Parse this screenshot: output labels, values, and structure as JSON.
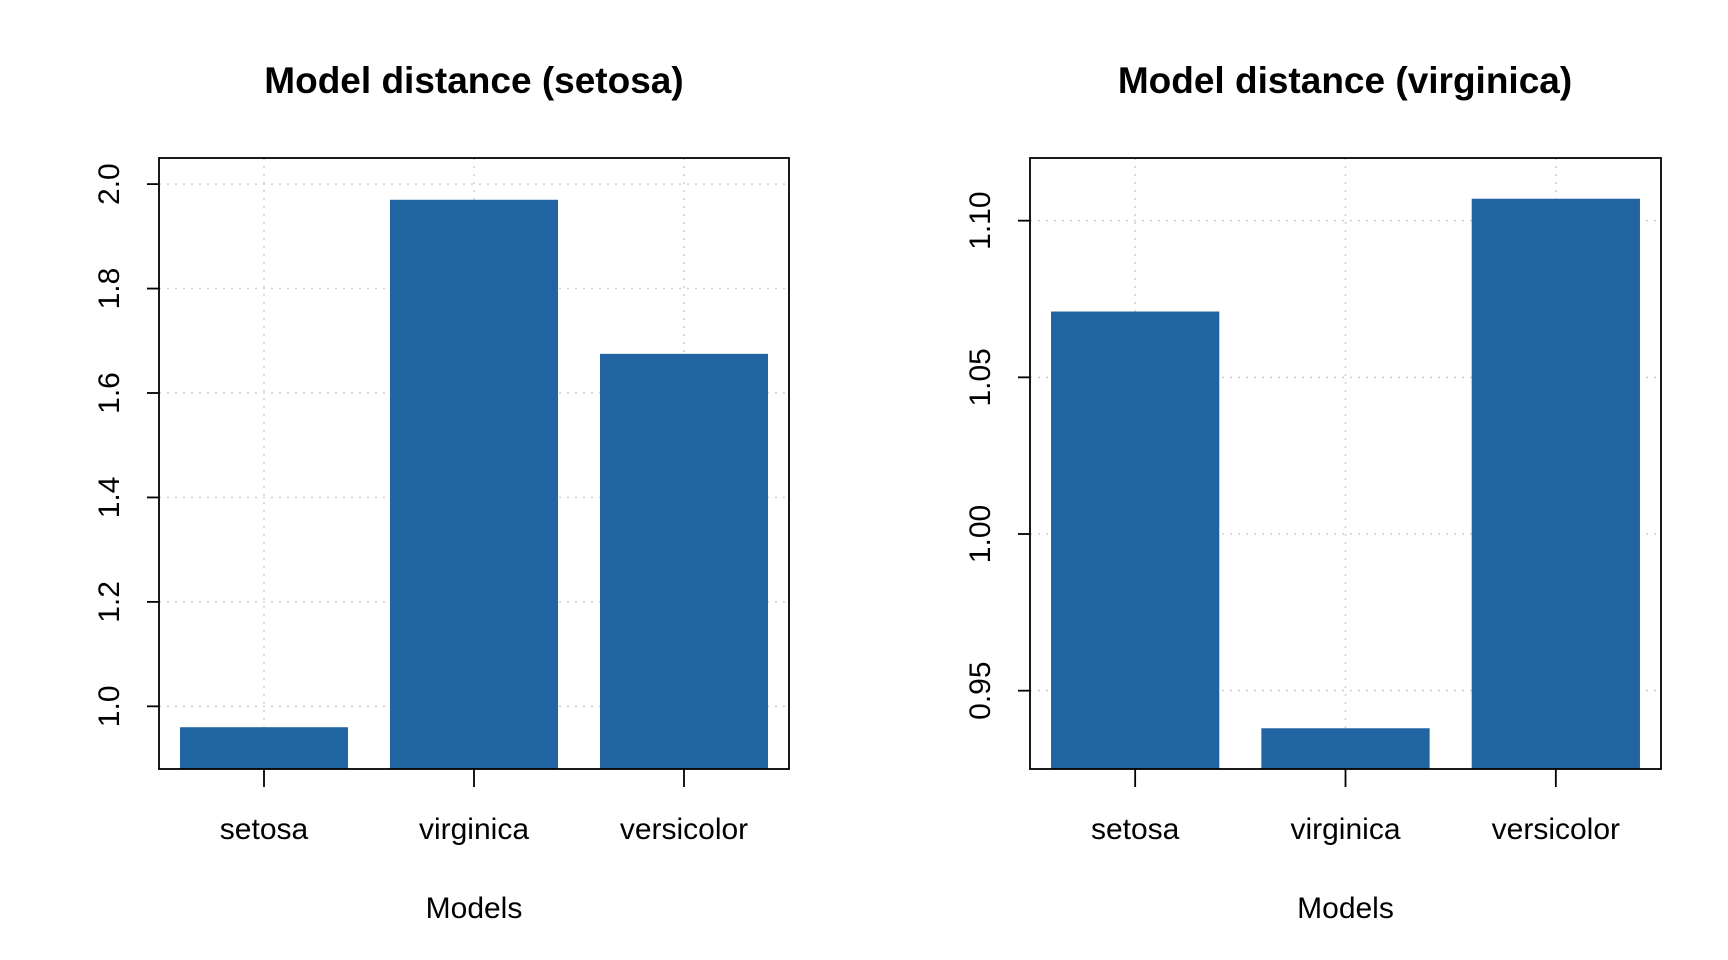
{
  "chart_data": [
    {
      "type": "bar",
      "title": "Model distance (setosa)",
      "categories": [
        "setosa",
        "virginica",
        "versicolor"
      ],
      "values": [
        0.96,
        1.97,
        1.675
      ],
      "xlabel": "Models",
      "ylabel": "",
      "ylim": [
        0.88,
        2.05
      ],
      "yticks": [
        1.0,
        1.2,
        1.4,
        1.6,
        1.8,
        2.0
      ],
      "ytick_labels": [
        "1.0",
        "1.2",
        "1.4",
        "1.6",
        "1.8",
        "2.0"
      ],
      "grid": true,
      "bar_color": "#2064a1"
    },
    {
      "type": "bar",
      "title": "Model distance (virginica)",
      "categories": [
        "setosa",
        "virginica",
        "versicolor"
      ],
      "values": [
        1.071,
        0.938,
        1.107
      ],
      "xlabel": "Models",
      "ylabel": "",
      "ylim": [
        0.925,
        1.12
      ],
      "yticks": [
        0.95,
        1.0,
        1.05,
        1.1
      ],
      "ytick_labels": [
        "0.95",
        "1.00",
        "1.05",
        "1.10"
      ],
      "grid": true,
      "bar_color": "#2064a1"
    }
  ]
}
